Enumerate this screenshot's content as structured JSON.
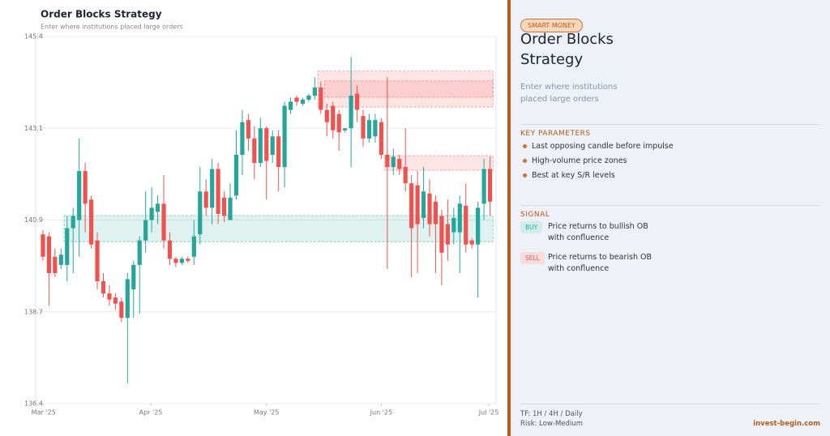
{
  "chart_data": {
    "type": "candlestick",
    "title": "Order Blocks Strategy",
    "subtitle": "Enter where institutions placed large orders",
    "open": [
      140.55,
      140.5,
      140.0,
      139.8,
      139.8,
      140.7,
      140.9,
      142.1,
      141.4,
      140.4,
      139.4,
      139.1,
      139.0,
      138.9,
      138.5,
      139.2,
      139.8,
      140.4,
      140.9,
      141.1,
      141.3,
      140.4,
      139.95,
      139.85,
      139.95,
      140.0,
      140.55,
      141.6,
      141.2,
      142.15,
      141.45,
      140.9,
      141.5,
      142.5,
      143.35,
      142.9,
      142.3,
      143.15,
      142.5,
      142.95,
      142.2,
      143.6,
      143.9,
      143.75,
      143.85,
      143.95,
      144.15,
      143.6,
      143.7,
      143.5,
      143.1,
      143.15,
      144.0,
      143.45,
      142.9,
      142.95,
      143.3,
      142.5,
      142.2,
      142.4,
      142.2,
      141.8,
      141.75,
      140.95,
      141.55,
      141.35,
      141.0,
      140.8,
      140.6,
      140.6,
      141.25,
      140.4,
      140.3,
      141.3,
      142.15
    ],
    "high": [
      140.65,
      140.6,
      140.2,
      140.2,
      141.0,
      141.2,
      142.9,
      142.3,
      141.5,
      140.6,
      139.6,
      139.3,
      139.1,
      139.0,
      139.6,
      139.9,
      140.5,
      141.6,
      141.7,
      141.5,
      142.0,
      140.6,
      140.0,
      140.0,
      140.0,
      140.9,
      142.2,
      141.9,
      142.4,
      142.3,
      141.6,
      141.8,
      143.1,
      143.6,
      143.5,
      143.2,
      143.4,
      143.2,
      143.1,
      143.1,
      143.8,
      143.9,
      143.95,
      143.9,
      144.0,
      144.4,
      144.3,
      143.75,
      143.8,
      143.6,
      143.15,
      144.9,
      144.2,
      143.6,
      143.5,
      143.5,
      143.4,
      144.4,
      142.65,
      142.5,
      143.15,
      142.0,
      142.1,
      142.2,
      141.9,
      141.5,
      141.15,
      141.4,
      141.2,
      141.5,
      141.8,
      140.45,
      141.35,
      142.4,
      142.45
    ],
    "low": [
      139.9,
      138.8,
      139.5,
      139.7,
      139.4,
      139.6,
      140.0,
      140.6,
      140.2,
      139.2,
      139.0,
      138.8,
      138.7,
      138.4,
      136.9,
      138.5,
      138.6,
      140.1,
      140.6,
      140.8,
      140.2,
      139.8,
      139.75,
      139.8,
      139.85,
      139.8,
      140.3,
      141.0,
      140.8,
      140.8,
      140.85,
      140.9,
      141.4,
      142.0,
      142.6,
      141.9,
      142.2,
      141.4,
      142.3,
      141.6,
      141.7,
      143.5,
      143.7,
      143.7,
      143.8,
      143.85,
      143.5,
      142.95,
      142.9,
      142.6,
      143.05,
      142.2,
      143.3,
      142.7,
      142.8,
      142.8,
      142.4,
      139.7,
      142.0,
      142.0,
      141.6,
      139.5,
      139.6,
      140.7,
      140.5,
      139.6,
      139.3,
      139.9,
      140.3,
      139.6,
      140.1,
      140.2,
      139.0,
      140.9,
      141.0
    ],
    "close": [
      140.0,
      139.6,
      139.6,
      140.05,
      140.7,
      141.0,
      142.1,
      141.3,
      140.3,
      139.4,
      139.1,
      138.95,
      138.85,
      138.5,
      139.45,
      139.8,
      140.4,
      140.9,
      141.2,
      141.3,
      140.4,
      139.95,
      139.85,
      139.95,
      139.9,
      140.5,
      141.6,
      141.2,
      142.15,
      141.05,
      141.0,
      141.45,
      142.5,
      143.3,
      142.9,
      142.3,
      143.15,
      142.35,
      142.95,
      142.2,
      143.7,
      143.8,
      143.8,
      143.85,
      143.95,
      144.15,
      143.6,
      143.3,
      143.1,
      143.05,
      143.15,
      143.95,
      143.6,
      142.9,
      143.35,
      143.35,
      142.5,
      142.2,
      142.45,
      142.15,
      141.8,
      140.7,
      140.8,
      141.6,
      140.8,
      140.8,
      140.1,
      140.3,
      140.95,
      141.3,
      140.3,
      140.3,
      141.2,
      142.15,
      141.35
    ],
    "up_color": "#26a69a",
    "down_color": "#ef5350",
    "zones": [
      {
        "start": 45.5,
        "end": 74.5,
        "low": 143.67,
        "high": 144.55,
        "color": "#ef5350"
      },
      {
        "start": 46.6,
        "end": 74.5,
        "low": 143.91,
        "high": 144.31,
        "color": "#ef5350"
      },
      {
        "start": 56.5,
        "end": 74.5,
        "low": 142.12,
        "high": 142.48,
        "color": "#ef5350"
      },
      {
        "start": 3.5,
        "end": 74.5,
        "low": 140.37,
        "high": 141.01,
        "color": "#26a69a"
      }
    ],
    "xlim": [
      -1.2,
      75
    ],
    "xticks": [
      {
        "value": 0.1,
        "label": "Mar '25"
      },
      {
        "value": 17.85,
        "label": "Apr '25"
      },
      {
        "value": 37.0,
        "label": "May '25"
      },
      {
        "value": 56.0,
        "label": "Jun '25"
      },
      {
        "value": 73.8,
        "label": "Jul '25"
      }
    ],
    "ylim": [
      136.4,
      145.4
    ],
    "yticks": [
      136.4,
      {
        "value": 138.65,
        "label": "138.7"
      },
      140.9,
      {
        "value": 143.15,
        "label": "143.1"
      },
      145.4
    ],
    "grid": true
  },
  "panel": {
    "tag": "SMART MONEY",
    "title_lines": [
      "Order Blocks",
      "Strategy"
    ],
    "description_lines": [
      "Enter where institutions",
      "placed large orders"
    ],
    "params_heading": "KEY PARAMETERS",
    "params": [
      "Last opposing candle before impulse",
      "High-volume price zones",
      "Best at key S/R levels"
    ],
    "signal_heading": "SIGNAL",
    "signals": [
      {
        "badge": "BUY",
        "lines": [
          "Price returns to bullish OB",
          "with confluence"
        ]
      },
      {
        "badge": "SELL",
        "lines": [
          "Price returns to bearish OB",
          "with confluence"
        ]
      }
    ],
    "footer": [
      "TF: 1H / 4H / Daily",
      "Risk: Low-Medium"
    ],
    "site": "invest-begin.com"
  }
}
